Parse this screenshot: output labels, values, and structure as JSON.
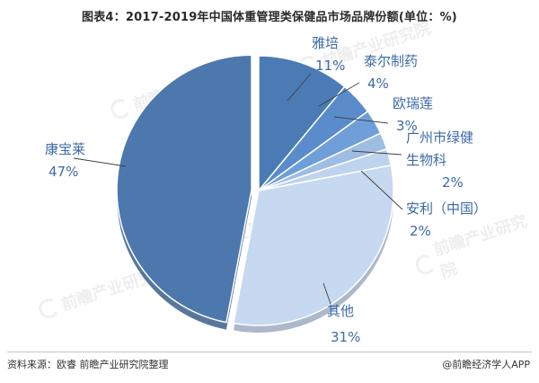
{
  "title": "图表4：2017-2019年中国体重管理类保健品市场品牌份额(单位：%)",
  "chart_data": {
    "type": "pie",
    "slices": [
      {
        "name": "雅培",
        "value": 11,
        "label": "11%",
        "color": "#4a7bb4"
      },
      {
        "name": "泰尔制药",
        "value": 4,
        "label": "4%",
        "color": "#5a8ccb"
      },
      {
        "name": "欧瑞莲",
        "value": 3,
        "label": "3%",
        "color": "#6f9fd8"
      },
      {
        "name": "广州市绿健生物科技",
        "value": 2,
        "label": "2%",
        "color": "#9dbde2"
      },
      {
        "name": "安利（中国）",
        "value": 2,
        "label": "2%",
        "color": "#bed3ee"
      },
      {
        "name": "其他",
        "value": 31,
        "label": "31%",
        "color": "#c7d8f1"
      },
      {
        "name": "康宝莱",
        "value": 47,
        "label": "47%",
        "color": "#4c78ad"
      }
    ]
  },
  "footer": {
    "source": "资料来源：欧睿 前瞻产业研究院整理",
    "credit": "@前瞻经济学人APP"
  },
  "watermark": {
    "text": "前瞻产业研究院",
    "color": "#8a8a8a"
  }
}
